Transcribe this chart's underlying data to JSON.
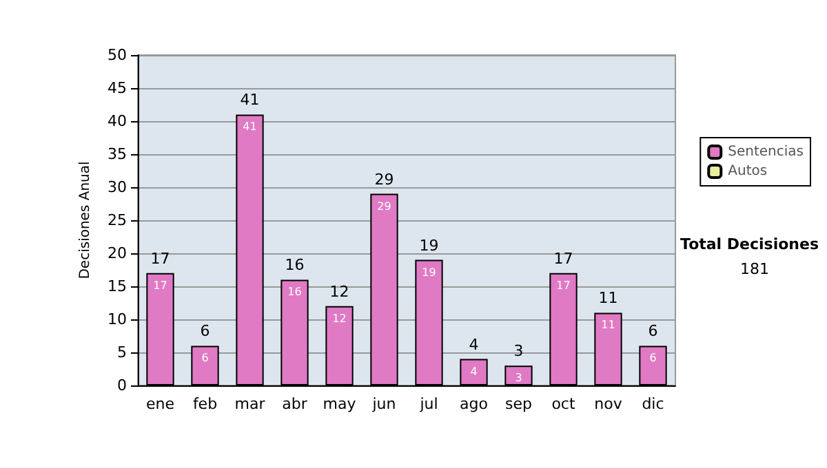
{
  "chart_data": {
    "type": "bar",
    "ylabel": "Decisiones Anual",
    "categories": [
      "ene",
      "feb",
      "mar",
      "abr",
      "may",
      "jun",
      "jul",
      "ago",
      "sep",
      "oct",
      "nov",
      "dic"
    ],
    "series": [
      {
        "name": "Sentencias",
        "color": "#e07ac4",
        "values": [
          17,
          6,
          41,
          16,
          12,
          29,
          19,
          4,
          3,
          17,
          11,
          6
        ],
        "value_labels": [
          "17",
          "6",
          "41",
          "16",
          "12",
          "29",
          "19",
          "4",
          "3",
          "17",
          "11",
          "6"
        ]
      },
      {
        "name": "Autos",
        "color": "#e8f0a0",
        "values": [
          0,
          0,
          0,
          0,
          0,
          0,
          0,
          0,
          0,
          0,
          0,
          0
        ]
      }
    ],
    "stacked": true,
    "totals": [
      "17",
      "6",
      "41",
      "16",
      "12",
      "29",
      "19",
      "4",
      "3",
      "17",
      "11",
      "6"
    ],
    "ylim": [
      0,
      50
    ],
    "yticks": [
      0,
      5,
      10,
      15,
      20,
      25,
      30,
      35,
      40,
      45,
      50
    ],
    "grid": "y",
    "legend": "right",
    "annotations": [
      "Total Decisiones",
      "181"
    ]
  }
}
